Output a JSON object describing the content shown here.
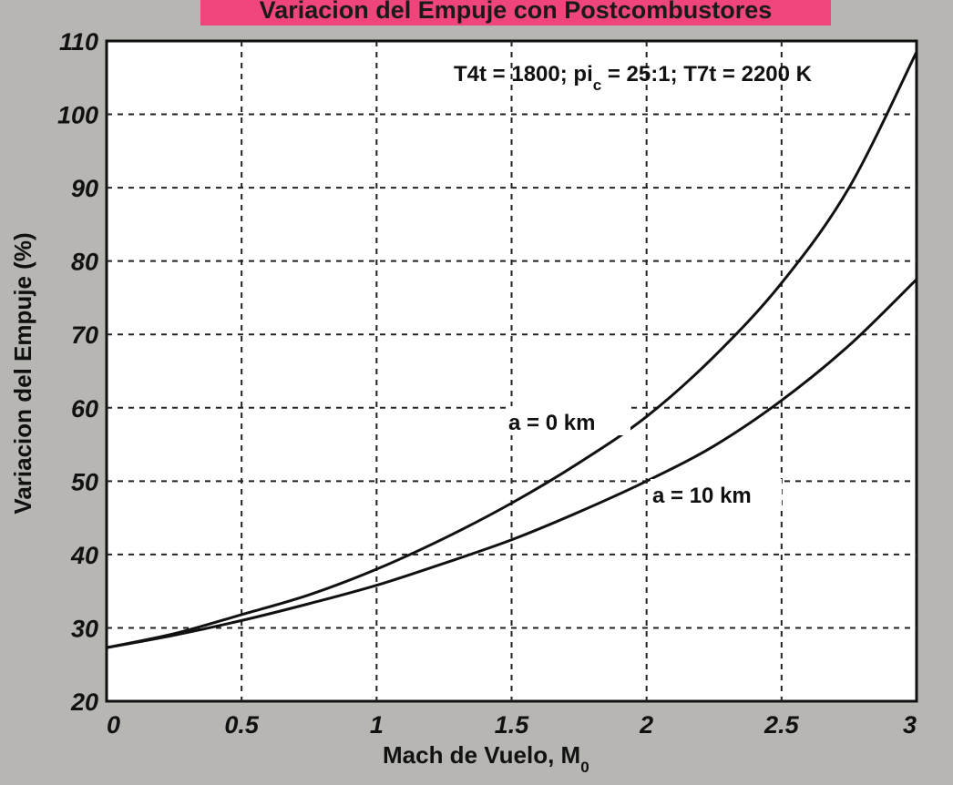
{
  "chart_data": {
    "type": "line",
    "title": "Variacion del Empuje con Postcombustores",
    "annotation": "T4t = 1800; pi_c = 25:1; T7t = 2200 K",
    "annotation_parts": {
      "main1": "T4t = 1800; pi",
      "sub": "c",
      "main2": " = 25:1; T7t = 2200 K"
    },
    "xlabel": "Mach de Vuelo, M0",
    "xlabel_parts": {
      "main": "Mach de Vuelo, M",
      "sub": "0"
    },
    "ylabel": "Variacion del Empuje (%)",
    "xlim": [
      0,
      3
    ],
    "ylim": [
      20,
      110
    ],
    "x_ticks": [
      0,
      0.5,
      1,
      1.5,
      2,
      2.5,
      3
    ],
    "x_tick_labels": [
      "0",
      "0.5",
      "1",
      "1.5",
      "2",
      "2.5",
      "3"
    ],
    "y_ticks": [
      20,
      30,
      40,
      50,
      60,
      70,
      80,
      90,
      100,
      110
    ],
    "y_tick_labels": [
      "20",
      "30",
      "40",
      "50",
      "60",
      "70",
      "80",
      "90",
      "100",
      "110"
    ],
    "grid": true,
    "series": [
      {
        "name": "a = 0 km",
        "x": [
          0,
          0.25,
          0.5,
          0.75,
          1.0,
          1.25,
          1.5,
          1.75,
          2.0,
          2.25,
          2.5,
          2.75,
          3.0
        ],
        "y": [
          27.3,
          29.2,
          31.8,
          34.5,
          38.0,
          42.2,
          47.0,
          52.5,
          58.8,
          67.0,
          77.0,
          90.0,
          108.5
        ]
      },
      {
        "name": "a = 10 km",
        "x": [
          0,
          0.25,
          0.5,
          0.75,
          1.0,
          1.25,
          1.5,
          1.75,
          2.0,
          2.25,
          2.5,
          2.75,
          3.0
        ],
        "y": [
          27.3,
          29.0,
          31.0,
          33.3,
          35.8,
          38.8,
          42.0,
          45.8,
          50.0,
          54.8,
          61.0,
          68.5,
          77.5
        ]
      }
    ]
  }
}
